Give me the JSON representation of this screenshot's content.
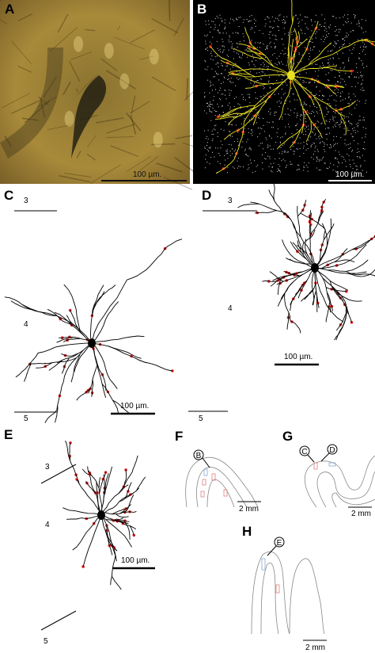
{
  "panels": [
    {
      "label": "A",
      "scale_label": "100 µm."
    },
    {
      "label": "B",
      "scale_label": "100 µm."
    },
    {
      "label": "C",
      "layers": [
        "3",
        "4",
        "5"
      ],
      "scale_label": "100 µm."
    },
    {
      "label": "D",
      "layers": [
        "3",
        "4",
        "5"
      ],
      "scale_label": "100 µm."
    },
    {
      "label": "E",
      "layers": [
        "3",
        "4",
        "5"
      ],
      "scale_label": "100 µm."
    },
    {
      "label": "F",
      "markers": [
        "B"
      ],
      "scale_label": "2 mm"
    },
    {
      "label": "G",
      "markers": [
        "C",
        "D"
      ],
      "scale_label": "2 mm"
    },
    {
      "label": "H",
      "markers": [
        "E"
      ],
      "scale_label": "2 mm"
    }
  ]
}
